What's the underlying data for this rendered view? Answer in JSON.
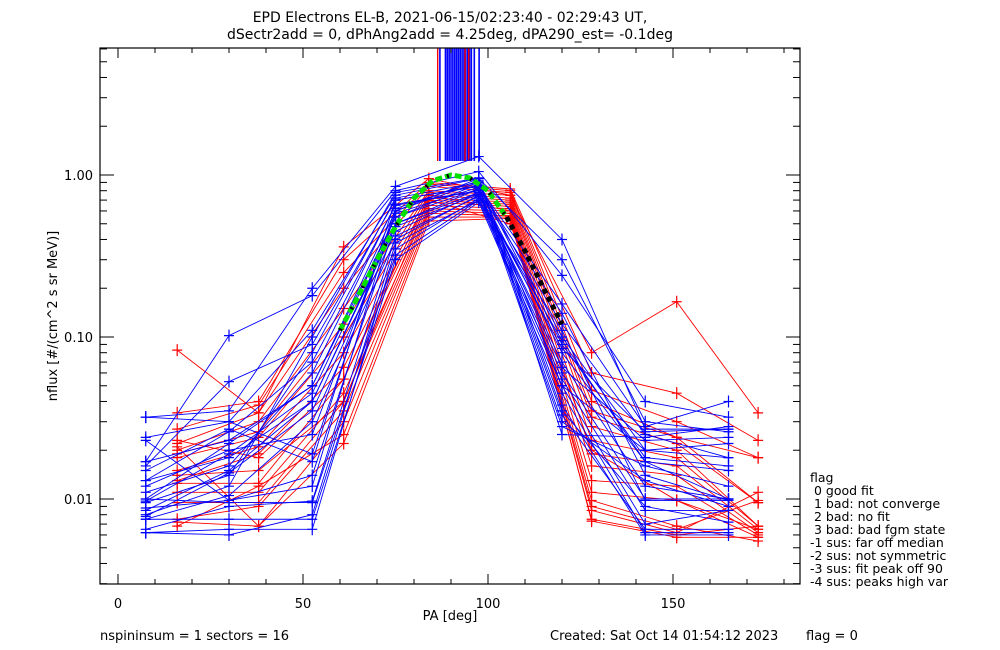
{
  "chart_data": {
    "type": "line",
    "title": [
      "EPD Electrons EL-B, 2021-06-15/02:23:40 - 02:29:43 UT,",
      "dSectr2add = 0, dPhAng2add = 4.25deg, dPA290_est=  -0.1deg"
    ],
    "xlabel": "PA [deg]",
    "ylabel": "nflux [#/(cm^2 s sr MeV)]",
    "xlim": [
      -5,
      185
    ],
    "ylim": [
      0.003,
      6.0
    ],
    "yscale": "log",
    "xticks": [
      0,
      50,
      100,
      150
    ],
    "xtick_labels": [
      "0",
      "50",
      "100",
      "150"
    ],
    "yticks": [
      0.01,
      0.1,
      1.0
    ],
    "ytick_labels": [
      "0.01",
      "0.10",
      "1.00"
    ],
    "colors": {
      "blue": "#0000ff",
      "red": "#ff0000",
      "fit": "#00e000",
      "fit_alt": "#000000",
      "axes": "#000000"
    },
    "blue_pa": [
      7.5,
      30,
      52.5,
      75,
      97.5,
      120,
      142.5,
      165
    ],
    "red_pa": [
      16,
      38,
      61,
      84,
      106,
      128,
      151,
      173
    ],
    "series": [
      {
        "name": "blue-01",
        "color": "blue",
        "values": [
          0.032,
          0.035,
          0.2,
          0.85,
          1.3,
          0.4,
          0.027,
          0.027
        ]
      },
      {
        "name": "blue-02",
        "color": "blue",
        "values": [
          0.024,
          0.03,
          0.11,
          0.75,
          0.95,
          0.3,
          0.03,
          0.026
        ]
      },
      {
        "name": "blue-03",
        "color": "blue",
        "values": [
          0.017,
          0.102,
          0.18,
          0.8,
          1.05,
          0.24,
          0.04,
          0.032
        ]
      },
      {
        "name": "blue-04",
        "color": "blue",
        "values": [
          0.016,
          0.053,
          0.09,
          0.7,
          0.85,
          0.16,
          0.028,
          0.04
        ]
      },
      {
        "name": "blue-05",
        "color": "blue",
        "values": [
          0.013,
          0.026,
          0.07,
          0.65,
          0.8,
          0.12,
          0.025,
          0.018
        ]
      },
      {
        "name": "blue-06",
        "color": "blue",
        "values": [
          0.01,
          0.022,
          0.05,
          0.6,
          0.9,
          0.1,
          0.02,
          0.018
        ]
      },
      {
        "name": "blue-07",
        "color": "blue",
        "values": [
          0.0097,
          0.019,
          0.045,
          0.55,
          0.88,
          0.09,
          0.018,
          0.016
        ]
      },
      {
        "name": "blue-08",
        "color": "blue",
        "values": [
          0.0085,
          0.015,
          0.04,
          0.5,
          0.82,
          0.08,
          0.017,
          0.015
        ]
      },
      {
        "name": "blue-09",
        "color": "blue",
        "values": [
          0.0078,
          0.0145,
          0.035,
          0.45,
          0.78,
          0.07,
          0.012,
          0.01
        ]
      },
      {
        "name": "blue-10",
        "color": "blue",
        "values": [
          0.0075,
          0.0105,
          0.03,
          0.4,
          0.75,
          0.06,
          0.01,
          0.01
        ]
      },
      {
        "name": "blue-11",
        "color": "blue",
        "values": [
          0.0062,
          0.0065,
          0.0065,
          0.35,
          0.72,
          0.055,
          0.0085,
          0.0085
        ]
      },
      {
        "name": "blue-12",
        "color": "blue",
        "values": [
          0.01,
          0.0095,
          0.0095,
          0.32,
          0.7,
          0.05,
          0.007,
          0.0085
        ]
      },
      {
        "name": "blue-13",
        "color": "blue",
        "values": [
          0.0075,
          0.0075,
          0.0075,
          0.3,
          0.68,
          0.045,
          0.0062,
          0.0062
        ]
      },
      {
        "name": "blue-14",
        "color": "blue",
        "values": [
          0.023,
          0.0098,
          0.012,
          0.6,
          0.95,
          0.038,
          0.006,
          0.006
        ]
      },
      {
        "name": "blue-15",
        "color": "blue",
        "values": [
          0.032,
          0.03,
          0.019,
          0.62,
          0.92,
          0.035,
          0.009,
          0.0072
        ]
      },
      {
        "name": "blue-16",
        "color": "blue",
        "values": [
          0.015,
          0.027,
          0.017,
          0.7,
          0.86,
          0.033,
          0.0065,
          0.0065
        ]
      },
      {
        "name": "blue-17",
        "color": "blue",
        "values": [
          0.012,
          0.02,
          0.025,
          0.58,
          0.84,
          0.03,
          0.013,
          0.009
        ]
      },
      {
        "name": "blue-18",
        "color": "blue",
        "values": [
          0.011,
          0.016,
          0.06,
          0.66,
          0.8,
          0.028,
          0.016,
          0.012
        ]
      },
      {
        "name": "blue-19",
        "color": "blue",
        "values": [
          0.0095,
          0.014,
          0.08,
          0.72,
          0.9,
          0.05,
          0.02,
          0.022
        ]
      },
      {
        "name": "blue-20",
        "color": "blue",
        "values": [
          0.008,
          0.012,
          0.1,
          0.78,
          0.96,
          0.025,
          0.024,
          0.028
        ]
      },
      {
        "name": "blue-21",
        "color": "blue",
        "values": [
          0.0088,
          0.0098,
          0.014,
          0.5,
          0.78,
          0.065,
          0.023,
          0.024
        ]
      },
      {
        "name": "blue-22",
        "color": "blue",
        "values": [
          0.0065,
          0.009,
          0.0097,
          0.42,
          0.74,
          0.095,
          0.017,
          0.01
        ]
      },
      {
        "name": "blue-23",
        "color": "blue",
        "values": [
          0.0062,
          0.006,
          0.008,
          0.38,
          0.7,
          0.11,
          0.0098,
          0.0098
        ]
      },
      {
        "name": "blue-24",
        "color": "blue",
        "values": [
          0.017,
          0.023,
          0.05,
          0.55,
          0.82,
          0.14,
          0.014,
          0.0098
        ]
      },
      {
        "name": "blue-25",
        "color": "blue",
        "values": [
          0.013,
          0.018,
          0.04,
          0.48,
          0.76,
          0.085,
          0.026,
          0.027
        ]
      },
      {
        "name": "red-01",
        "color": "red",
        "values": [
          0.083,
          0.034,
          0.36,
          0.95,
          0.75,
          0.08,
          0.165,
          0.034
        ]
      },
      {
        "name": "red-02",
        "color": "red",
        "values": [
          0.034,
          0.04,
          0.3,
          0.9,
          0.82,
          0.06,
          0.045,
          0.023
        ]
      },
      {
        "name": "red-03",
        "color": "red",
        "values": [
          0.027,
          0.038,
          0.25,
          0.88,
          0.8,
          0.047,
          0.03,
          0.018
        ]
      },
      {
        "name": "red-04",
        "color": "red",
        "values": [
          0.022,
          0.034,
          0.2,
          0.85,
          0.78,
          0.04,
          0.024,
          0.018
        ]
      },
      {
        "name": "red-05",
        "color": "red",
        "values": [
          0.02,
          0.03,
          0.15,
          0.8,
          0.75,
          0.035,
          0.024,
          0.0095
        ]
      },
      {
        "name": "red-06",
        "color": "red",
        "values": [
          0.019,
          0.026,
          0.12,
          0.78,
          0.72,
          0.032,
          0.022,
          0.0095
        ]
      },
      {
        "name": "red-07",
        "color": "red",
        "values": [
          0.018,
          0.024,
          0.1,
          0.75,
          0.7,
          0.028,
          0.02,
          0.0068
        ]
      },
      {
        "name": "red-08",
        "color": "red",
        "values": [
          0.015,
          0.021,
          0.08,
          0.72,
          0.68,
          0.023,
          0.018,
          0.0068
        ]
      },
      {
        "name": "red-09",
        "color": "red",
        "values": [
          0.013,
          0.019,
          0.065,
          0.7,
          0.66,
          0.019,
          0.016,
          0.0065
        ]
      },
      {
        "name": "red-10",
        "color": "red",
        "values": [
          0.0125,
          0.0125,
          0.055,
          0.68,
          0.64,
          0.016,
          0.014,
          0.0062
        ]
      },
      {
        "name": "red-11",
        "color": "red",
        "values": [
          0.011,
          0.011,
          0.045,
          0.65,
          0.62,
          0.013,
          0.012,
          0.006
        ]
      },
      {
        "name": "red-12",
        "color": "red",
        "values": [
          0.0095,
          0.0095,
          0.04,
          0.62,
          0.6,
          0.011,
          0.0098,
          0.0058
        ]
      },
      {
        "name": "red-13",
        "color": "red",
        "values": [
          0.0075,
          0.009,
          0.035,
          0.6,
          0.58,
          0.0098,
          0.0068,
          0.0055
        ]
      },
      {
        "name": "red-14",
        "color": "red",
        "values": [
          0.0072,
          0.0068,
          0.03,
          0.58,
          0.56,
          0.009,
          0.0065,
          0.0098
        ]
      },
      {
        "name": "red-15",
        "color": "red",
        "values": [
          0.0068,
          0.012,
          0.025,
          0.55,
          0.55,
          0.0085,
          0.0062,
          0.011
        ]
      },
      {
        "name": "red-16",
        "color": "red",
        "values": [
          0.021,
          0.0068,
          0.022,
          0.52,
          0.54,
          0.0075,
          0.006,
          0.0068
        ]
      },
      {
        "name": "red-17",
        "color": "red",
        "values": [
          0.023,
          0.018,
          0.055,
          0.75,
          0.6,
          0.0073,
          0.0058,
          0.0058
        ]
      },
      {
        "name": "red-18",
        "color": "red",
        "values": [
          0.014,
          0.015,
          0.04,
          0.7,
          0.5,
          0.02,
          0.0098,
          0.0065
        ]
      }
    ],
    "peak_markers": {
      "description": "vertical lines at fitted peak PA for each spin",
      "blue_pa": [
        87.0,
        88.5,
        89.0,
        89.5,
        90.0,
        90.5,
        91.0,
        91.5,
        92.0,
        92.5,
        93.0,
        93.5,
        94.0,
        94.5,
        95.0,
        95.5,
        96.3,
        97.6
      ],
      "red_pa": [
        86.4,
        93.8,
        94.8
      ],
      "ymin_value": 1.22
    },
    "fit_curve": {
      "pa": [
        60,
        65,
        70,
        75,
        80,
        85,
        90,
        95,
        100,
        105,
        110,
        115,
        120
      ],
      "value": [
        0.11,
        0.18,
        0.3,
        0.48,
        0.72,
        0.92,
        1.0,
        0.96,
        0.8,
        0.55,
        0.34,
        0.2,
        0.12
      ],
      "green_until_pa": 105
    },
    "legend": {
      "title": "flag",
      "items": [
        " 0 good fit",
        " 1 bad: not converge",
        " 2 bad: no fit",
        " 3 bad: bad fgm state",
        "-1 sus: far off median",
        "-2 sus: not symmetric",
        "-3 sus: fit peak off 90",
        "-4 sus: peaks high var"
      ],
      "placement": "right"
    }
  },
  "footer": {
    "left": "nspininsum =  1  sectors = 16",
    "created": "Created: Sat Oct 14 01:54:12 2023",
    "flag": "flag = 0"
  }
}
